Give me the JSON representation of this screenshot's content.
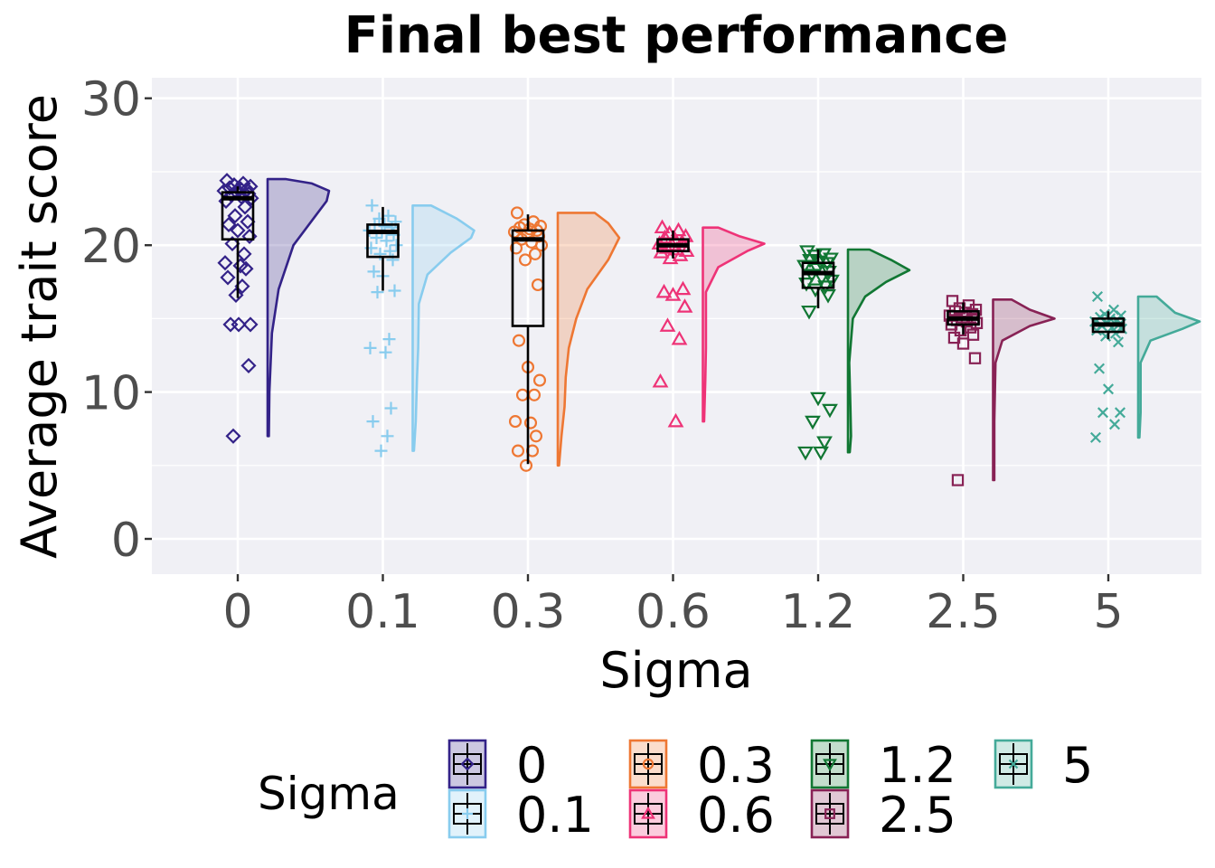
{
  "chart_data": {
    "type": "raincloud",
    "title": "Final best performance",
    "xlabel": "Sigma",
    "ylabel": "Average trait score",
    "ylim": [
      -2.4,
      31.4
    ],
    "yticks": [
      0,
      10,
      20,
      30
    ],
    "grid": true,
    "legend": {
      "title": "Sigma",
      "placement": "bottom"
    },
    "categories": [
      "0",
      "0.1",
      "0.3",
      "0.6",
      "1.2",
      "2.5",
      "5"
    ],
    "series": [
      {
        "name": "0",
        "color": "#332288",
        "marker": "diamond",
        "box": {
          "q1": 20.4,
          "median": 23.2,
          "q3": 23.6,
          "whisker_low": 16.4,
          "whisker_high": 24.0
        },
        "points": [
          24.4,
          24.2,
          24.1,
          24.0,
          23.9,
          23.9,
          23.8,
          23.7,
          23.6,
          23.5,
          23.4,
          23.3,
          23.2,
          23.0,
          22.6,
          22.0,
          21.6,
          21.4,
          21.0,
          20.6,
          20.1,
          19.4,
          18.8,
          18.6,
          18.4,
          17.8,
          17.2,
          16.6,
          14.6,
          14.6,
          14.6,
          11.8,
          7.0
        ],
        "density": [
          [
            7.0,
            0.02
          ],
          [
            10,
            0.03
          ],
          [
            14,
            0.07
          ],
          [
            17,
            0.18
          ],
          [
            20,
            0.42
          ],
          [
            22,
            0.78
          ],
          [
            23,
            0.96
          ],
          [
            23.7,
            1.0
          ],
          [
            24.2,
            0.72
          ],
          [
            24.5,
            0.3
          ]
        ]
      },
      {
        "name": "0.1",
        "color": "#88CCEE",
        "marker": "plus",
        "box": {
          "q1": 19.2,
          "median": 20.9,
          "q3": 21.4,
          "whisker_low": 16.9,
          "whisker_high": 22.6
        },
        "points": [
          22.7,
          22.0,
          21.8,
          21.6,
          21.4,
          21.3,
          21.2,
          21.0,
          20.9,
          20.7,
          20.5,
          20.3,
          20.0,
          19.8,
          19.6,
          19.4,
          19.0,
          18.2,
          17.9,
          16.9,
          16.8,
          13.6,
          13.0,
          12.7,
          8.9,
          8.0,
          7.0,
          6.0
        ],
        "density": [
          [
            6.0,
            0.02
          ],
          [
            8,
            0.05
          ],
          [
            11,
            0.07
          ],
          [
            13,
            0.09
          ],
          [
            16,
            0.1
          ],
          [
            18,
            0.24
          ],
          [
            19.5,
            0.62
          ],
          [
            20.5,
            0.95
          ],
          [
            21.0,
            1.0
          ],
          [
            21.8,
            0.72
          ],
          [
            22.7,
            0.3
          ]
        ]
      },
      {
        "name": "0.3",
        "color": "#EE7733",
        "marker": "circle",
        "box": {
          "q1": 14.5,
          "median": 20.4,
          "q3": 21.0,
          "whisker_low": 5.1,
          "whisker_high": 22.1
        },
        "points": [
          22.2,
          21.6,
          21.4,
          21.3,
          21.2,
          21.1,
          21.0,
          20.9,
          20.8,
          20.6,
          20.4,
          20.2,
          20.0,
          19.8,
          19.4,
          19.0,
          17.3,
          13.5,
          11.7,
          10.8,
          9.8,
          9.8,
          8.0,
          7.9,
          7.0,
          6.0,
          6.0,
          5.0
        ],
        "density": [
          [
            5.0,
            0.02
          ],
          [
            7,
            0.06
          ],
          [
            9,
            0.11
          ],
          [
            11,
            0.13
          ],
          [
            13,
            0.18
          ],
          [
            15,
            0.3
          ],
          [
            17,
            0.48
          ],
          [
            19,
            0.82
          ],
          [
            20.5,
            1.0
          ],
          [
            21.5,
            0.82
          ],
          [
            22.2,
            0.6
          ]
        ]
      },
      {
        "name": "0.6",
        "color": "#EE3377",
        "marker": "triangle",
        "box": {
          "q1": 19.6,
          "median": 20.0,
          "q3": 20.4,
          "whisker_low": 19.1,
          "whisker_high": 21.0
        },
        "points": [
          21.2,
          21.0,
          20.8,
          20.6,
          20.5,
          20.4,
          20.2,
          20.1,
          20.0,
          19.9,
          19.8,
          19.7,
          19.6,
          19.5,
          19.3,
          19.1,
          17.0,
          16.8,
          16.6,
          15.8,
          14.5,
          13.6,
          10.7,
          8.0
        ],
        "density": [
          [
            8.0,
            0.02
          ],
          [
            10.8,
            0.04
          ],
          [
            13,
            0.05
          ],
          [
            16.8,
            0.05
          ],
          [
            18.5,
            0.25
          ],
          [
            19.6,
            0.72
          ],
          [
            20.1,
            1.0
          ],
          [
            20.6,
            0.6
          ],
          [
            21.2,
            0.25
          ]
        ]
      },
      {
        "name": "1.2",
        "color": "#117733",
        "marker": "triangle-down",
        "box": {
          "q1": 17.1,
          "median": 18.1,
          "q3": 18.8,
          "whisker_low": 15.7,
          "whisker_high": 19.7
        },
        "points": [
          19.6,
          19.4,
          19.3,
          19.1,
          19.0,
          18.9,
          18.8,
          18.6,
          18.4,
          18.2,
          18.0,
          17.8,
          17.6,
          17.4,
          17.2,
          17.0,
          16.6,
          15.5,
          9.6,
          8.8,
          8.0,
          6.6,
          5.9,
          5.9
        ],
        "density": [
          [
            5.9,
            0.03
          ],
          [
            7,
            0.05
          ],
          [
            9,
            0.04
          ],
          [
            12,
            0.02
          ],
          [
            15,
            0.08
          ],
          [
            16.5,
            0.28
          ],
          [
            17.5,
            0.62
          ],
          [
            18.3,
            1.0
          ],
          [
            19.0,
            0.7
          ],
          [
            19.7,
            0.35
          ]
        ]
      },
      {
        "name": "2.5",
        "color": "#882255",
        "marker": "square",
        "box": {
          "q1": 14.6,
          "median": 15.0,
          "q3": 15.5,
          "whisker_low": 13.9,
          "whisker_high": 16.1
        },
        "points": [
          16.2,
          15.9,
          15.7,
          15.6,
          15.5,
          15.4,
          15.3,
          15.2,
          15.1,
          15.0,
          14.9,
          14.8,
          14.7,
          14.6,
          14.4,
          14.2,
          13.9,
          13.7,
          13.3,
          12.3,
          4.0
        ],
        "density": [
          [
            4.0,
            0.02
          ],
          [
            8,
            0.02
          ],
          [
            12,
            0.04
          ],
          [
            13.5,
            0.15
          ],
          [
            14.5,
            0.6
          ],
          [
            15.0,
            1.0
          ],
          [
            15.6,
            0.6
          ],
          [
            16.3,
            0.3
          ]
        ]
      },
      {
        "name": "5",
        "color": "#44AA99",
        "marker": "cross",
        "box": {
          "q1": 14.1,
          "median": 14.6,
          "q3": 15.0,
          "whisker_low": 13.6,
          "whisker_high": 15.5
        },
        "points": [
          16.5,
          15.6,
          15.3,
          15.2,
          15.1,
          15.0,
          14.9,
          14.8,
          14.7,
          14.6,
          14.5,
          14.4,
          14.3,
          14.2,
          14.0,
          13.8,
          13.4,
          11.6,
          10.2,
          8.6,
          8.6,
          7.8,
          6.9
        ],
        "density": [
          [
            6.9,
            0.02
          ],
          [
            8.6,
            0.04
          ],
          [
            10,
            0.04
          ],
          [
            12,
            0.04
          ],
          [
            13.5,
            0.2
          ],
          [
            14.3,
            0.72
          ],
          [
            14.8,
            1.0
          ],
          [
            15.4,
            0.6
          ],
          [
            16.5,
            0.3
          ]
        ]
      }
    ]
  }
}
